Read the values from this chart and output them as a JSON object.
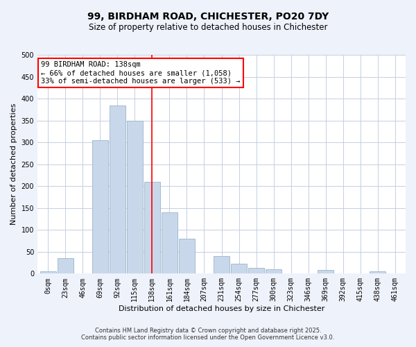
{
  "title": "99, BIRDHAM ROAD, CHICHESTER, PO20 7DY",
  "subtitle": "Size of property relative to detached houses in Chichester",
  "xlabel": "Distribution of detached houses by size in Chichester",
  "ylabel": "Number of detached properties",
  "bin_labels": [
    "0sqm",
    "23sqm",
    "46sqm",
    "69sqm",
    "92sqm",
    "115sqm",
    "138sqm",
    "161sqm",
    "184sqm",
    "207sqm",
    "231sqm",
    "254sqm",
    "277sqm",
    "300sqm",
    "323sqm",
    "346sqm",
    "369sqm",
    "392sqm",
    "415sqm",
    "438sqm",
    "461sqm"
  ],
  "bar_heights": [
    5,
    35,
    0,
    305,
    385,
    350,
    210,
    140,
    80,
    0,
    40,
    22,
    14,
    10,
    0,
    0,
    8,
    0,
    0,
    5,
    0
  ],
  "bar_color": "#c8d8ea",
  "bar_edgecolor": "#9ab4cc",
  "vline_x": 6,
  "vline_color": "red",
  "ylim": [
    0,
    500
  ],
  "yticks": [
    0,
    50,
    100,
    150,
    200,
    250,
    300,
    350,
    400,
    450,
    500
  ],
  "annotation_text": "99 BIRDHAM ROAD: 138sqm\n← 66% of detached houses are smaller (1,058)\n33% of semi-detached houses are larger (533) →",
  "annotation_box_color": "white",
  "annotation_box_edgecolor": "red",
  "footer1": "Contains HM Land Registry data © Crown copyright and database right 2025.",
  "footer2": "Contains public sector information licensed under the Open Government Licence v3.0.",
  "background_color": "#eef2fb",
  "plot_background": "white",
  "grid_color": "#c5cfe0",
  "title_fontsize": 10,
  "subtitle_fontsize": 8.5,
  "axis_label_fontsize": 8,
  "tick_fontsize": 7,
  "annotation_fontsize": 7.5,
  "footer_fontsize": 6
}
